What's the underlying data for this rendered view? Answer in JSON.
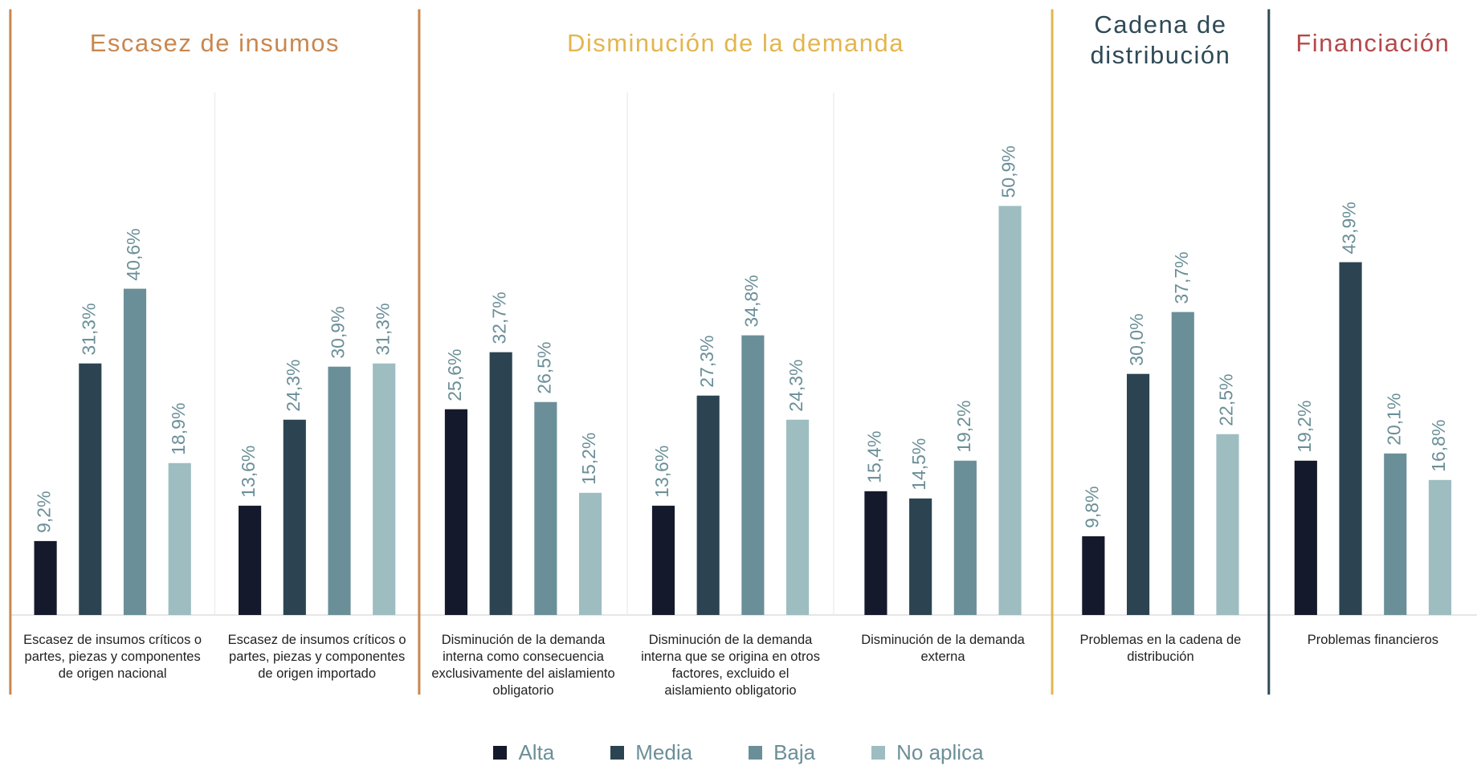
{
  "chart_data": {
    "type": "bar",
    "groups": [
      {
        "title": "Escasez de insumos",
        "color": "#c9874f",
        "categories": [
          "Escasez de insumos críticos o partes, piezas y componentes de origen nacional",
          "Escasez de insumos críticos o partes, piezas y componentes de origen importado"
        ]
      },
      {
        "title": "Disminución de la demanda",
        "color": "#e3b54e",
        "categories": [
          "Disminución de la demanda interna como consecuencia exclusivamente del aislamiento obligatorio",
          "Disminución de la demanda interna que se origina en otros factores, excluido el aislamiento obligatorio",
          "Disminución de la demanda externa"
        ]
      },
      {
        "title": "Cadena de distribución",
        "color": "#2f4a56",
        "categories": [
          "Problemas en la cadena de distribución"
        ]
      },
      {
        "title": "Financiación",
        "color": "#b5484a",
        "categories": [
          "Problemas financieros"
        ]
      }
    ],
    "series": [
      {
        "name": "Alta",
        "color": "#15192c",
        "values": [
          9.2,
          13.6,
          25.6,
          13.6,
          15.4,
          9.8,
          19.2
        ],
        "value_labels": [
          "9,2%",
          "13,6%",
          "25,6%",
          "13,6%",
          "15,4%",
          "9,8%",
          "19,2%"
        ]
      },
      {
        "name": "Media",
        "color": "#2c4452",
        "values": [
          31.3,
          24.3,
          32.7,
          27.3,
          14.5,
          30.0,
          43.9
        ],
        "value_labels": [
          "31,3%",
          "24,3%",
          "32,7%",
          "27,3%",
          "14,5%",
          "30,0%",
          "43,9%"
        ]
      },
      {
        "name": "Baja",
        "color": "#6b8f98",
        "values": [
          40.6,
          30.9,
          26.5,
          34.8,
          19.2,
          37.7,
          20.1
        ],
        "value_labels": [
          "40,6%",
          "30,9%",
          "26,5%",
          "34,8%",
          "19,2%",
          "37,7%",
          "20,1%"
        ]
      },
      {
        "name": "No aplica",
        "color": "#9dbdc1",
        "values": [
          18.9,
          31.3,
          15.2,
          24.3,
          50.9,
          22.5,
          16.8
        ],
        "value_labels": [
          "18,9%",
          "31,3%",
          "15,2%",
          "24,3%",
          "50,9%",
          "22,5%",
          "16,8%"
        ]
      }
    ],
    "ylim": [
      0,
      65
    ]
  }
}
